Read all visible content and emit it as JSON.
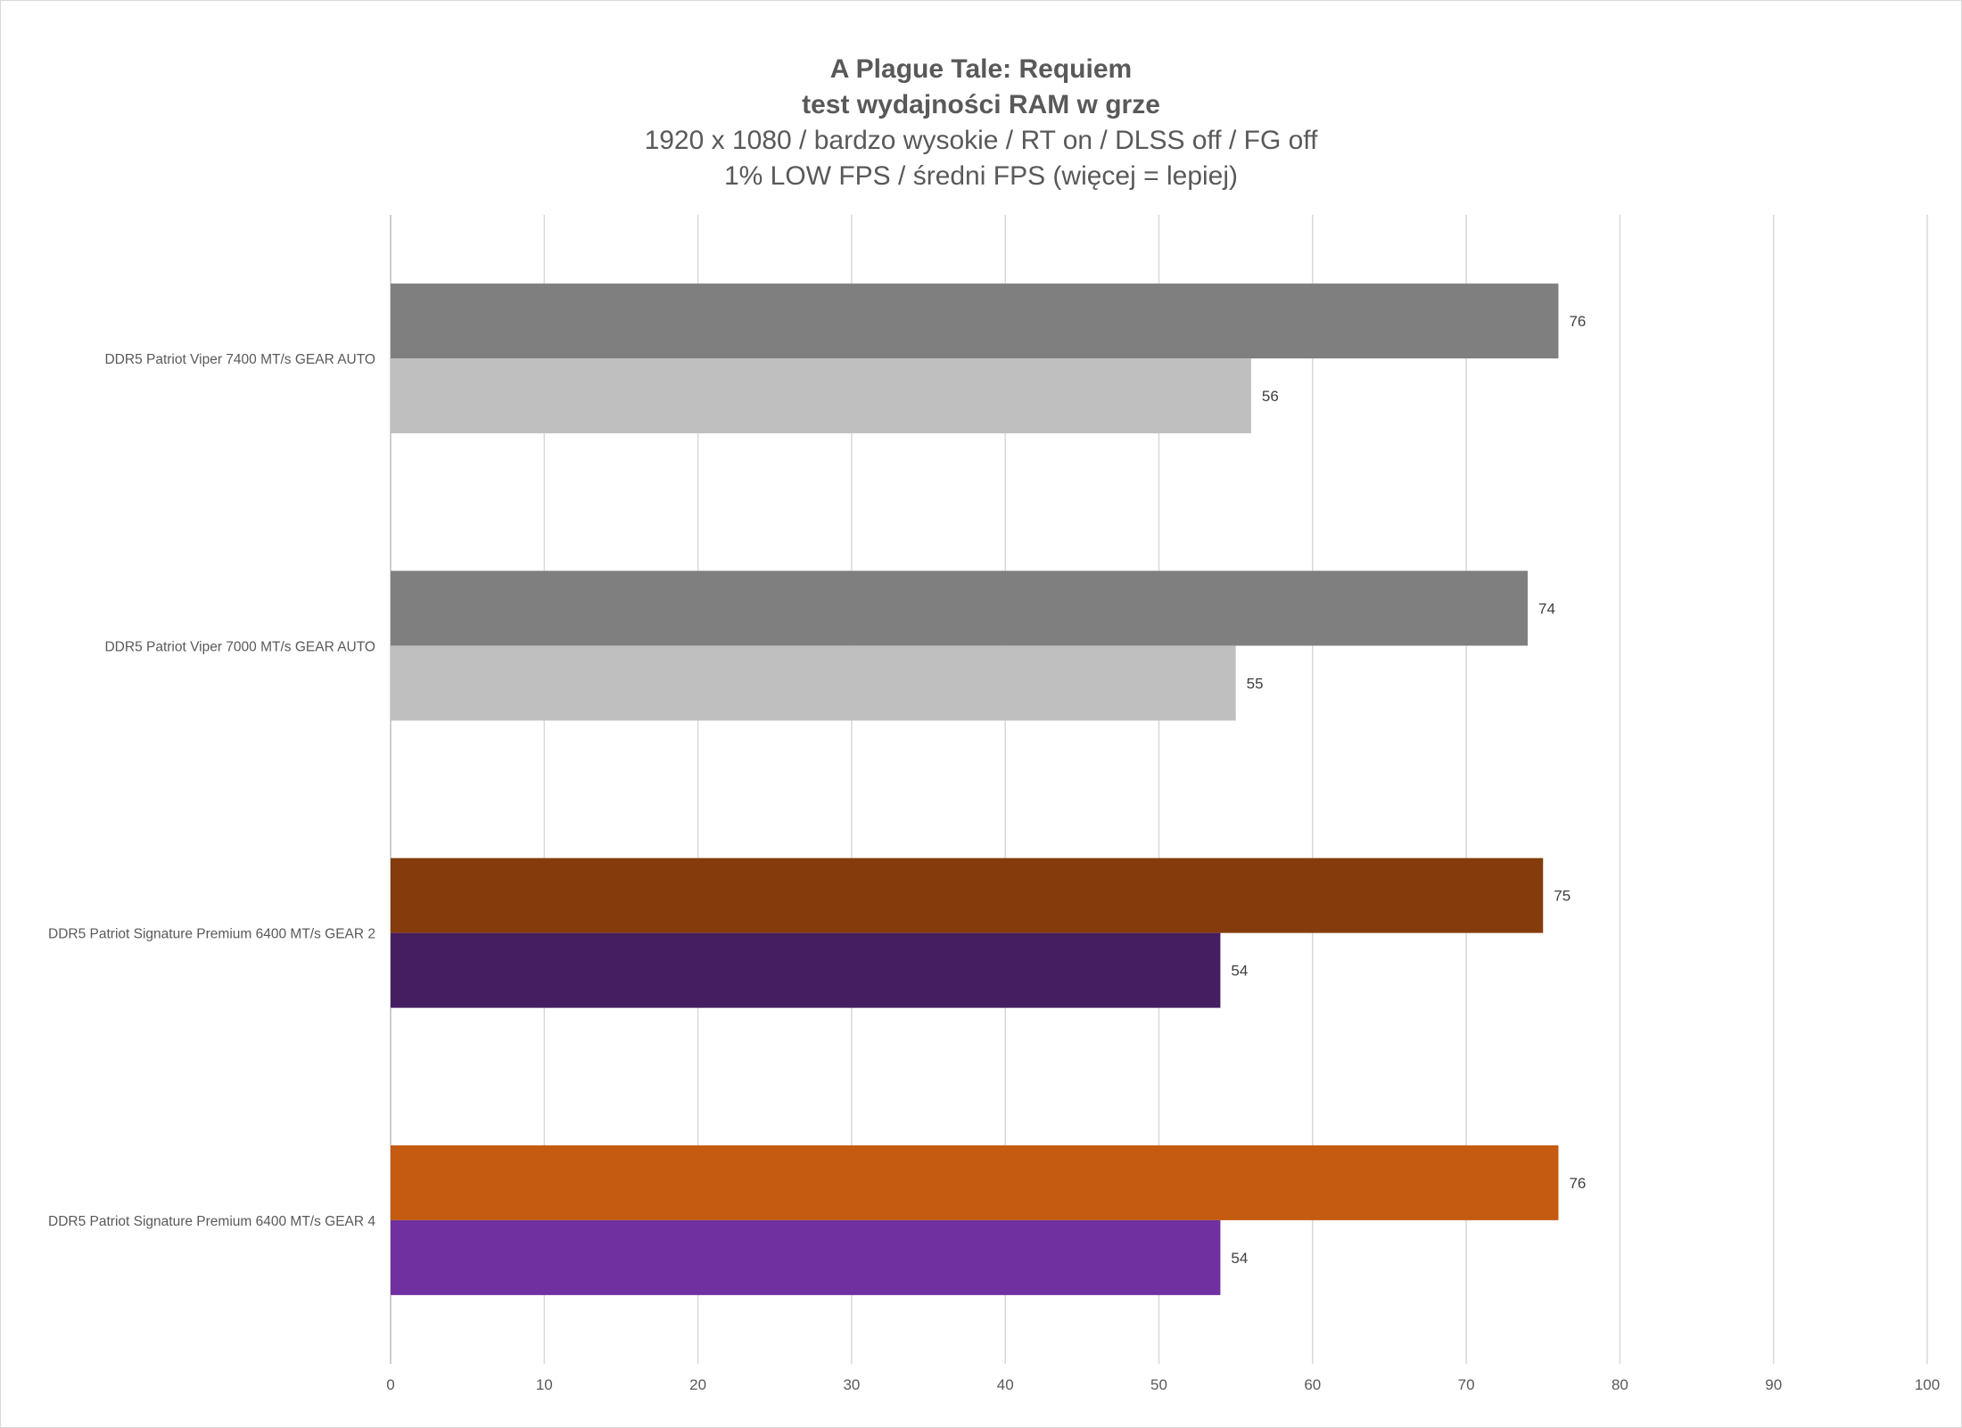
{
  "chart_data": {
    "type": "bar",
    "orientation": "horizontal",
    "title": "A Plague Tale: Requiem",
    "subtitle_bold": "test wydajności RAM w grze",
    "subtitle_line1": "1920 x 1080 / bardzo wysokie / RT on / DLSS off / FG off",
    "subtitle_line2": "1% LOW FPS / średni FPS (więcej = lepiej)",
    "xlabel": "",
    "ylabel": "",
    "xlim": [
      0,
      100
    ],
    "x_ticks": [
      "0",
      "10",
      "20",
      "30",
      "40",
      "50",
      "60",
      "70",
      "80",
      "90",
      "100"
    ],
    "grid": true,
    "legend": "none",
    "categories": [
      "DDR5 Patriot Viper 7400 MT/s GEAR AUTO",
      "DDR5 Patriot Viper 7000 MT/s GEAR AUTO",
      "DDR5 Patriot Signature Premium 6400 MT/s GEAR 2",
      "DDR5 Patriot Signature Premium 6400 MT/s GEAR 4"
    ],
    "series": [
      {
        "values": [
          76,
          74,
          75,
          76
        ],
        "colors": [
          "#7f7f7f",
          "#7f7f7f",
          "#843c0c",
          "#c55a11"
        ]
      },
      {
        "values": [
          56,
          55,
          54,
          54
        ],
        "colors": [
          "#bfbfbf",
          "#bfbfbf",
          "#451e61",
          "#7030a0"
        ]
      }
    ],
    "colors": {
      "gridline": "#d9d9d9",
      "axis": "#bfbfbf",
      "text": "#595959"
    }
  }
}
